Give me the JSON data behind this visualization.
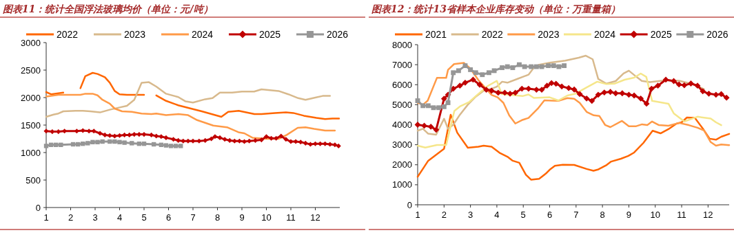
{
  "chart_data": [
    {
      "type": "line",
      "title": "图表11：统计全国浮法玻璃均价（单位：元/吨）",
      "legend": "top",
      "xlim": [
        1,
        13
      ],
      "xticks": [
        1,
        2,
        3,
        4,
        5,
        6,
        7,
        8,
        9,
        10,
        11,
        12
      ],
      "ylim": [
        0,
        3000
      ],
      "yticks": [
        0,
        500,
        1000,
        1500,
        2000,
        2500,
        3000
      ],
      "grid": false,
      "series": [
        {
          "name": "2022",
          "color": "#ff6600",
          "marker": "none",
          "x": [
            1,
            1.2,
            1.7,
            2.05,
            2.4,
            2.6,
            2.9,
            3.1,
            3.4,
            3.6,
            3.8,
            4.0,
            4.3,
            4.7,
            5.0,
            5.25,
            5.5,
            5.9,
            6.4,
            7.0,
            7.36,
            8.16,
            8.44,
            8.87,
            9.51,
            9.8,
            10.35,
            10.8,
            11.1,
            11.53,
            12.04,
            12.4,
            12.7,
            12.97
          ],
          "values": [
            2100,
            2060,
            2090,
            null,
            2170,
            2390,
            2450,
            2430,
            2370,
            2270,
            2120,
            2060,
            2050,
            2050,
            2050,
            null,
            2040,
            1940,
            1860,
            1790,
            1750,
            1650,
            1740,
            1760,
            1700,
            1700,
            1720,
            1730,
            1720,
            1670,
            1630,
            1610,
            1620,
            1620
          ]
        },
        {
          "name": "2023",
          "color": "#d8b98c",
          "marker": "none",
          "x": [
            1,
            1.3,
            1.5,
            1.7,
            2.2,
            2.5,
            2.8,
            3.2,
            3.6,
            4.0,
            4.3,
            4.6,
            4.9,
            5.2,
            5.5,
            5.9,
            6.4,
            6.7,
            7.0,
            7.5,
            7.8,
            8.1,
            8.6,
            9.0,
            9.5,
            9.8,
            10.5,
            10.9,
            11.3,
            11.6,
            12.0,
            12.3,
            12.6
          ],
          "values": [
            1650,
            1690,
            1710,
            1750,
            1760,
            1760,
            1750,
            1730,
            1780,
            1820,
            1850,
            1960,
            2270,
            2280,
            2200,
            2070,
            2010,
            1930,
            1910,
            1970,
            1990,
            2090,
            2090,
            2110,
            2110,
            2150,
            2120,
            2060,
            1990,
            1960,
            2000,
            2030,
            2030
          ]
        },
        {
          "name": "2024",
          "color": "#ff9a47",
          "marker": "none",
          "x": [
            1,
            1.5,
            2.0,
            2.4,
            2.6,
            2.9,
            3.1,
            3.3,
            3.6,
            3.8,
            4.1,
            4.5,
            4.9,
            5.3,
            5.5,
            5.9,
            6.4,
            6.8,
            7.17,
            7.83,
            8.39,
            8.86,
            9.1,
            9.43,
            9.99,
            10.5,
            10.83,
            11.28,
            11.6,
            11.95,
            12.4,
            12.8
          ],
          "values": [
            2020,
            2050,
            2050,
            2050,
            2070,
            2070,
            2040,
            1960,
            1890,
            1800,
            1750,
            1740,
            1710,
            1700,
            1710,
            1680,
            1700,
            1680,
            1590,
            1490,
            1460,
            1370,
            1350,
            1270,
            1250,
            1250,
            1320,
            1450,
            1460,
            1430,
            1400,
            1400
          ]
        },
        {
          "name": "2025",
          "color": "#c00000",
          "marker": "diamond",
          "x": [
            1,
            1.25,
            1.5,
            1.75,
            2.25,
            2.5,
            2.75,
            2.95,
            3.2,
            3.4,
            3.6,
            3.8,
            4.0,
            4.2,
            4.4,
            4.6,
            4.8,
            5.0,
            5.3,
            5.5,
            5.7,
            5.9,
            6.2,
            6.4,
            6.6,
            6.8,
            7.0,
            7.25,
            7.5,
            7.75,
            7.9,
            8.1,
            8.3,
            8.5,
            8.7,
            8.9,
            9.1,
            9.3,
            9.55,
            9.8,
            10.0,
            10.2,
            10.4,
            10.6,
            10.8,
            11.0,
            11.2,
            11.4,
            11.6,
            11.8,
            12.0,
            12.2,
            12.4,
            12.6,
            12.8,
            12.95
          ],
          "values": [
            1390,
            1380,
            1380,
            1390,
            1390,
            1400,
            1390,
            1390,
            1350,
            1320,
            1310,
            1300,
            1310,
            1320,
            1320,
            1330,
            1330,
            1330,
            1320,
            1300,
            1290,
            1270,
            1240,
            1220,
            1210,
            1210,
            1210,
            1210,
            1220,
            1250,
            1290,
            1270,
            1240,
            1220,
            1210,
            1210,
            1200,
            1210,
            1220,
            1230,
            1290,
            1260,
            1260,
            1300,
            1240,
            1200,
            1200,
            1190,
            1170,
            1150,
            1160,
            1160,
            1160,
            1150,
            1140,
            1120
          ]
        },
        {
          "name": "2026",
          "color": "#969696",
          "marker": "square",
          "x": [
            1,
            1.2,
            1.4,
            1.6,
            2.1,
            2.3,
            2.5,
            2.7,
            2.9,
            3.1,
            3.3,
            3.6,
            3.8,
            4.0,
            4.2,
            4.5,
            4.8,
            5.0,
            5.4,
            5.7,
            5.9,
            6.1,
            6.3,
            6.5
          ],
          "values": [
            1120,
            1140,
            1140,
            1140,
            1150,
            1150,
            1160,
            1170,
            1190,
            1190,
            1200,
            1200,
            1200,
            1190,
            1180,
            1170,
            1160,
            1160,
            1150,
            1140,
            1130,
            1120,
            1120,
            1120
          ]
        }
      ]
    },
    {
      "type": "line",
      "title": "图表12：统计13省样本企业库存变动（单位：万重量箱）",
      "legend": "top",
      "xlim": [
        1,
        12.8
      ],
      "xticks": [
        1,
        2,
        3,
        4,
        5,
        6,
        7,
        8,
        9,
        10,
        11,
        12
      ],
      "ylim": [
        0,
        8000
      ],
      "yticks": [
        0,
        1000,
        2000,
        3000,
        4000,
        5000,
        6000,
        7000,
        8000
      ],
      "grid": false,
      "series": [
        {
          "name": "2021",
          "color": "#ff6600",
          "marker": "none",
          "x": [
            1,
            1.2,
            1.4,
            1.7,
            2.0,
            2.25,
            2.5,
            2.9,
            3.3,
            3.5,
            3.8,
            4.1,
            4.4,
            4.6,
            4.85,
            5.1,
            5.3,
            5.6,
            5.85,
            6.0,
            6.2,
            6.5,
            6.93,
            7.4,
            7.66,
            7.85,
            8.16,
            8.33,
            8.7,
            8.98,
            9.2,
            9.55,
            9.9,
            10.2,
            10.5,
            10.8,
            11.0,
            11.2,
            11.5,
            11.8,
            12.06,
            12.3,
            12.5,
            12.8
          ],
          "values": [
            1400,
            1800,
            2200,
            2500,
            2800,
            4500,
            3600,
            2850,
            2900,
            2950,
            2900,
            2600,
            2400,
            2200,
            2100,
            1500,
            1250,
            1300,
            1550,
            1750,
            1950,
            2000,
            1990,
            1790,
            1700,
            1770,
            1990,
            2160,
            2300,
            2440,
            2610,
            3090,
            3700,
            3570,
            3780,
            4050,
            4120,
            4360,
            4340,
            3810,
            3300,
            3250,
            3400,
            3540
          ]
        },
        {
          "name": "2022",
          "color": "#d8b98c",
          "marker": "none",
          "x": [
            1,
            1.2,
            1.4,
            1.7,
            2.0,
            2.15,
            2.35,
            2.6,
            2.9,
            3.2,
            3.5,
            3.8,
            4.0,
            4.2,
            4.4,
            4.8,
            5.2,
            5.4,
            5.6,
            6.0,
            6.59,
            7.1,
            7.37,
            7.63,
            7.84,
            8.15,
            8.5,
            8.8,
            9.0,
            9.28,
            9.49,
            9.8,
            10.4,
            10.9,
            11.5,
            11.85
          ],
          "values": [
            3700,
            3800,
            3550,
            3500,
            4300,
            3800,
            4000,
            4500,
            5000,
            5400,
            5700,
            5800,
            5900,
            6150,
            6100,
            6300,
            6500,
            6850,
            7000,
            7100,
            7200,
            7350,
            7450,
            7270,
            6290,
            6050,
            6180,
            6560,
            6700,
            6400,
            6190,
            6130,
            6220,
            6200,
            6000,
            5770
          ]
        },
        {
          "name": "2023",
          "color": "#ff9a47",
          "marker": "none",
          "x": [
            1,
            1.2,
            1.38,
            1.73,
            2.08,
            2.15,
            2.38,
            2.75,
            3.0,
            3.3,
            3.8,
            4.03,
            4.25,
            4.47,
            4.7,
            4.95,
            5.2,
            5.55,
            5.8,
            6.1,
            6.33,
            6.67,
            6.93,
            7.14,
            7.4,
            7.67,
            7.88,
            8.1,
            8.3,
            8.74,
            9.0,
            9.26,
            9.5,
            9.7,
            9.88,
            10.14,
            10.5,
            10.9,
            11.27,
            11.6,
            11.85,
            12.1,
            12.3,
            12.5,
            12.8
          ],
          "values": [
            5100,
            5000,
            5200,
            6340,
            6340,
            6740,
            7030,
            7090,
            6800,
            6230,
            5490,
            5370,
            5090,
            4460,
            4060,
            4230,
            4340,
            4800,
            5220,
            5200,
            5190,
            5330,
            5300,
            5090,
            4640,
            4470,
            4440,
            3990,
            3880,
            4190,
            3920,
            3920,
            4020,
            3980,
            4160,
            3980,
            3950,
            4090,
            3980,
            3850,
            3710,
            3130,
            2950,
            3010,
            2980
          ]
        },
        {
          "name": "2024",
          "color": "#f5e68a",
          "marker": "none",
          "x": [
            1,
            1.29,
            1.73,
            2.08,
            2.39,
            2.6,
            2.96,
            3.3,
            3.66,
            4.0,
            4.18,
            4.5,
            4.97,
            5.2,
            5.4,
            6.0,
            6.33,
            6.67,
            6.98,
            7.37,
            7.8,
            8.15,
            8.45,
            8.84,
            9.2,
            9.45,
            9.66,
            9.88,
            10.5,
            10.7,
            11.1,
            11.6,
            12.1,
            12.3,
            12.5
          ],
          "values": [
            2950,
            2860,
            2990,
            2990,
            4690,
            4910,
            5140,
            5540,
            5940,
            6190,
            5540,
            5490,
            5430,
            5510,
            5340,
            5370,
            5210,
            5460,
            5550,
            5840,
            6150,
            6030,
            6050,
            6250,
            6350,
            6560,
            6390,
            5190,
            5050,
            4570,
            4160,
            4400,
            4310,
            4120,
            3980
          ]
        },
        {
          "name": "2025",
          "color": "#c00000",
          "marker": "diamond",
          "x": [
            1,
            1.25,
            1.5,
            1.7,
            2.0,
            2.15,
            2.35,
            2.6,
            2.8,
            3.1,
            3.35,
            3.6,
            3.8,
            4.05,
            4.3,
            4.5,
            4.7,
            4.95,
            5.2,
            5.5,
            5.7,
            5.9,
            6.07,
            6.24,
            6.46,
            6.72,
            6.93,
            7.14,
            7.4,
            7.6,
            7.84,
            8.07,
            8.3,
            8.5,
            8.75,
            9.0,
            9.2,
            9.45,
            9.67,
            9.86,
            10.1,
            10.4,
            10.7,
            10.9,
            11.1,
            11.35,
            11.6,
            11.8,
            12.03,
            12.3,
            12.5,
            12.7
          ],
          "values": [
            4000,
            3950,
            3900,
            3750,
            5300,
            5500,
            5800,
            5950,
            6100,
            6250,
            6000,
            5750,
            5700,
            5600,
            5600,
            5550,
            5600,
            5800,
            5800,
            5750,
            5750,
            5950,
            6080,
            6050,
            5910,
            5830,
            5760,
            5530,
            5310,
            5190,
            5500,
            5610,
            5640,
            5570,
            5570,
            5500,
            5460,
            5310,
            5050,
            5800,
            5950,
            6250,
            6180,
            6010,
            5970,
            6060,
            5950,
            5670,
            5550,
            5500,
            5530,
            5350
          ]
        },
        {
          "name": "2026",
          "color": "#969696",
          "marker": "square",
          "x": [
            1,
            1.2,
            1.4,
            1.6,
            1.8,
            2.0,
            2.15,
            2.35,
            2.55,
            2.8,
            3.0,
            3.2,
            3.45,
            3.7,
            3.9,
            4.2,
            4.4,
            4.6,
            4.85,
            5.05,
            5.3,
            5.5,
            5.7,
            5.95,
            6.15,
            6.35,
            6.55
          ],
          "values": [
            5200,
            4950,
            4950,
            4850,
            4850,
            4900,
            5100,
            6600,
            6700,
            6950,
            6750,
            6600,
            6500,
            6600,
            6700,
            6850,
            6900,
            6850,
            7000,
            6900,
            6900,
            6900,
            6900,
            6950,
            6950,
            6900,
            6950
          ]
        }
      ]
    }
  ]
}
